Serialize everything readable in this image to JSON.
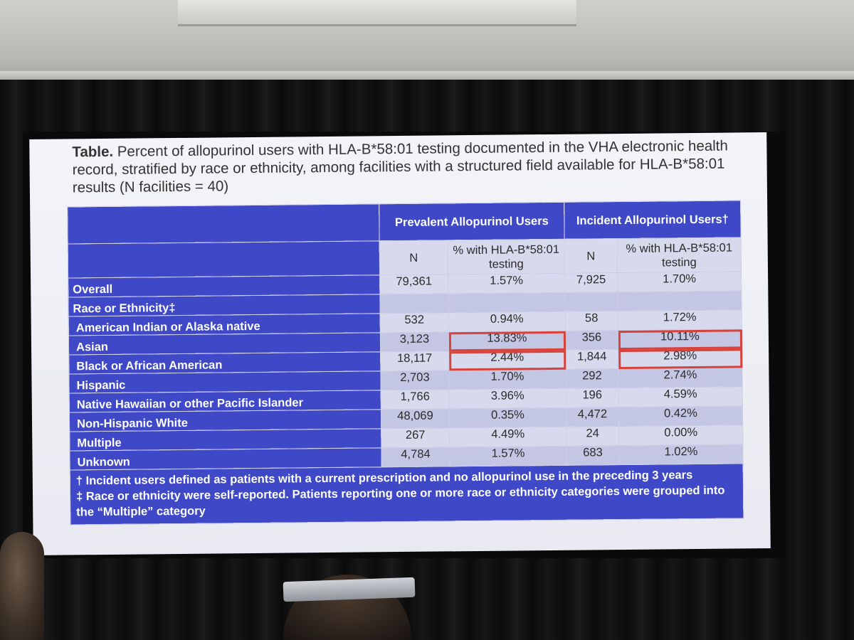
{
  "slide": {
    "caption_lead": "Table.",
    "caption_rest": " Percent of allopurinol users with HLA-B*58:01 testing documented in the VHA electronic health record, stratified by race or ethnicity, among facilities with a structured field available for HLA-B*58:01 results (N facilities = 40)",
    "group_headers": [
      "Prevalent Allopurinol Users",
      "Incident Allopurinol Users†"
    ],
    "sub_headers": [
      "N",
      "% with HLA-B*58:01 testing",
      "N",
      "% with HLA-B*58:01 testing"
    ],
    "rows": [
      {
        "label": "Overall",
        "values": [
          "79,361",
          "1.57%",
          "7,925",
          "1.70%"
        ]
      },
      {
        "label": "Race or Ethnicity‡",
        "values": [
          "",
          "",
          "",
          ""
        ]
      },
      {
        "label": "American Indian or Alaska native",
        "values": [
          "532",
          "0.94%",
          "58",
          "1.72%"
        ]
      },
      {
        "label": "Asian",
        "values": [
          "3,123",
          "13.83%",
          "356",
          "10.11%"
        ]
      },
      {
        "label": "Black or African American",
        "values": [
          "18,117",
          "2.44%",
          "1,844",
          "2.98%"
        ]
      },
      {
        "label": "Hispanic",
        "values": [
          "2,703",
          "1.70%",
          "292",
          "2.74%"
        ]
      },
      {
        "label": "Native Hawaiian or other Pacific Islander",
        "values": [
          "1,766",
          "3.96%",
          "196",
          "4.59%"
        ]
      },
      {
        "label": "Non-Hispanic White",
        "values": [
          "48,069",
          "0.35%",
          "4,472",
          "0.42%"
        ]
      },
      {
        "label": "Multiple",
        "values": [
          "267",
          "4.49%",
          "24",
          "0.00%"
        ]
      },
      {
        "label": "Unknown",
        "values": [
          "4,784",
          "1.57%",
          "683",
          "1.02%"
        ]
      }
    ],
    "footnotes": [
      "† Incident users defined as patients with a current prescription and no allopurinol use in the preceding 3 years",
      "‡ Race or ethnicity were self-reported. Patients reporting one or more race or ethnicity categories were grouped into the “Multiple” category"
    ],
    "highlight_color": "#d8423a",
    "header_color": "#3f49c7"
  }
}
